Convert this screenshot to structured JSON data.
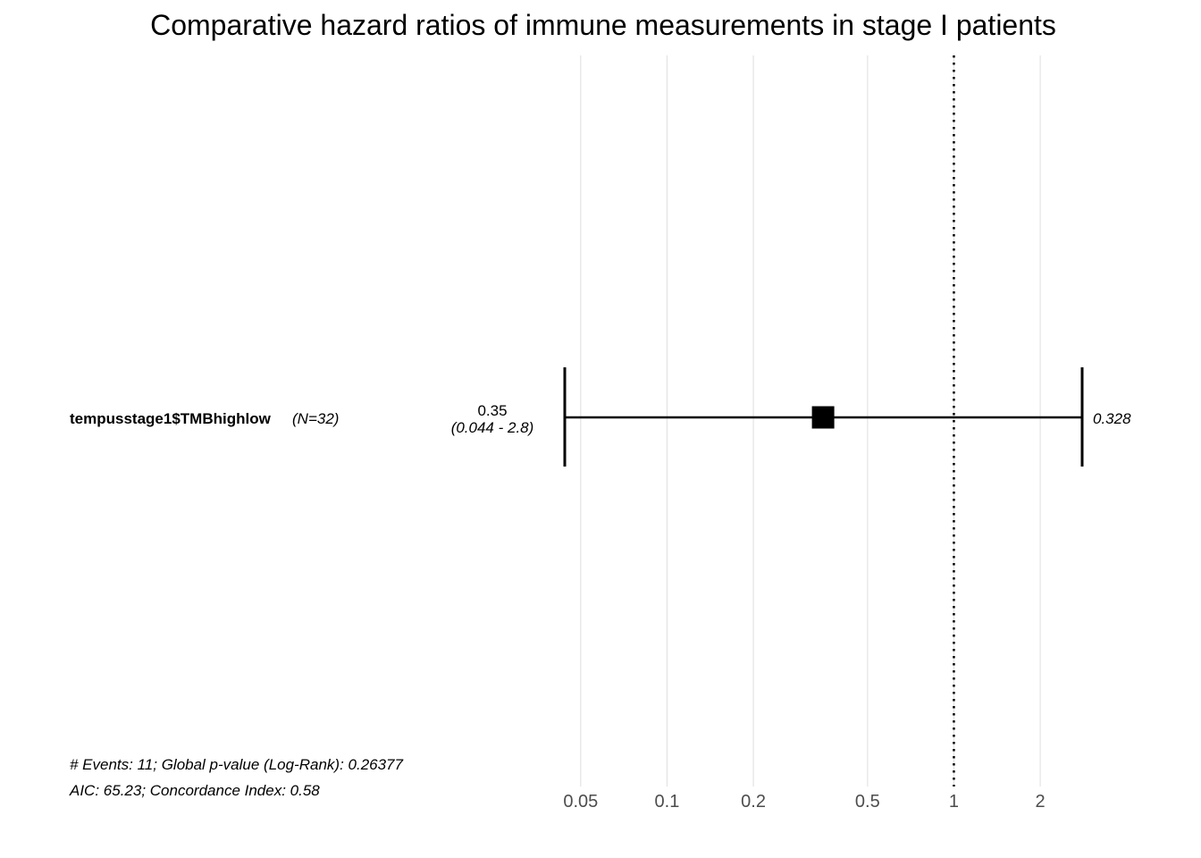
{
  "chart_data": {
    "type": "forest",
    "title": "Comparative hazard ratios of immune measurements in stage I patients",
    "x_scale": "log",
    "xlim": [
      0.044,
      2.8
    ],
    "ticks": [
      {
        "value": 0.05,
        "label": "0.05"
      },
      {
        "value": 0.1,
        "label": "0.1"
      },
      {
        "value": 0.2,
        "label": "0.2"
      },
      {
        "value": 0.5,
        "label": "0.5"
      },
      {
        "value": 1,
        "label": "1"
      },
      {
        "value": 2,
        "label": "2"
      }
    ],
    "reference_line": 1,
    "rows": [
      {
        "variable": "tempusstage1$TMBhighlow",
        "n_label": "(N=32)",
        "hr": 0.35,
        "ci_low": 0.044,
        "ci_high": 2.8,
        "hr_label": "0.35",
        "ci_label": "(0.044 - 2.8)",
        "p_label": "0.328"
      }
    ],
    "footer": [
      "# Events: 11; Global p-value (Log-Rank): 0.26377",
      "AIC: 65.23; Concordance Index: 0.58"
    ]
  }
}
